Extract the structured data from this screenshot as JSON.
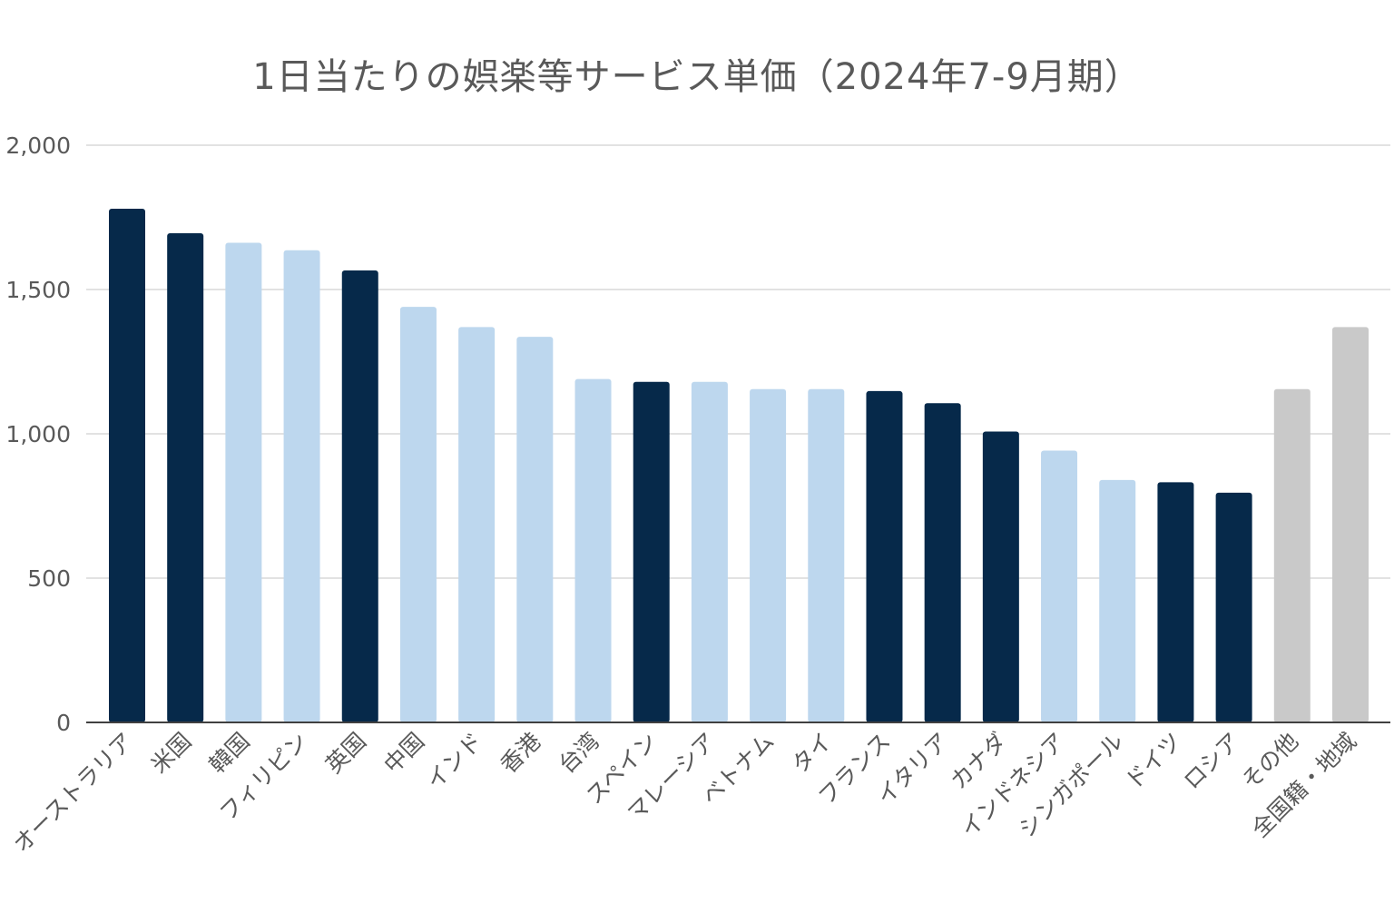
{
  "chart_data": {
    "type": "bar",
    "title": "1日当たりの娯楽等サービス単価（2024年7-9月期）",
    "xlabel": "",
    "ylabel": "",
    "ylim": [
      0,
      2000
    ],
    "yticks": [
      0,
      500,
      1000,
      1500,
      2000
    ],
    "ytick_labels": [
      "0",
      "500",
      "1,000",
      "1,500",
      "2,000"
    ],
    "grid": true,
    "legend": "none",
    "categories": [
      "オーストラリア",
      "米国",
      "韓国",
      "フィリピン",
      "英国",
      "中国",
      "インド",
      "香港",
      "台湾",
      "スペイン",
      "マレーシア",
      "ベトナム",
      "タイ",
      "フランス",
      "イタリア",
      "カナダ",
      "インドネシア",
      "シンガポール",
      "ドイツ",
      "ロシア",
      "その他",
      "全国籍・地域"
    ],
    "values": [
      1780,
      1695,
      1662,
      1636,
      1566,
      1440,
      1370,
      1336,
      1190,
      1180,
      1180,
      1155,
      1155,
      1148,
      1106,
      1008,
      942,
      840,
      832,
      796,
      1155,
      1370
    ],
    "bar_colors": [
      "#06294a",
      "#06294a",
      "#bdd7ee",
      "#bdd7ee",
      "#06294a",
      "#bdd7ee",
      "#bdd7ee",
      "#bdd7ee",
      "#bdd7ee",
      "#06294a",
      "#bdd7ee",
      "#bdd7ee",
      "#bdd7ee",
      "#06294a",
      "#06294a",
      "#06294a",
      "#bdd7ee",
      "#bdd7ee",
      "#06294a",
      "#06294a",
      "#c9c9c9",
      "#c9c9c9"
    ],
    "label_colors": [
      "#595959",
      "#404040",
      "#404040",
      "#595959",
      "#404040",
      "#404040",
      "#595959",
      "#404040",
      "#404040",
      "#595959",
      "#595959",
      "#595959",
      "#595959",
      "#595959",
      "#595959",
      "#595959",
      "#595959",
      "#595959",
      "#595959",
      "#595959",
      "#595959",
      "#404040"
    ]
  },
  "colors": {
    "gridline": "#d9d9d9",
    "axis": "#404040",
    "text": "#595959"
  }
}
